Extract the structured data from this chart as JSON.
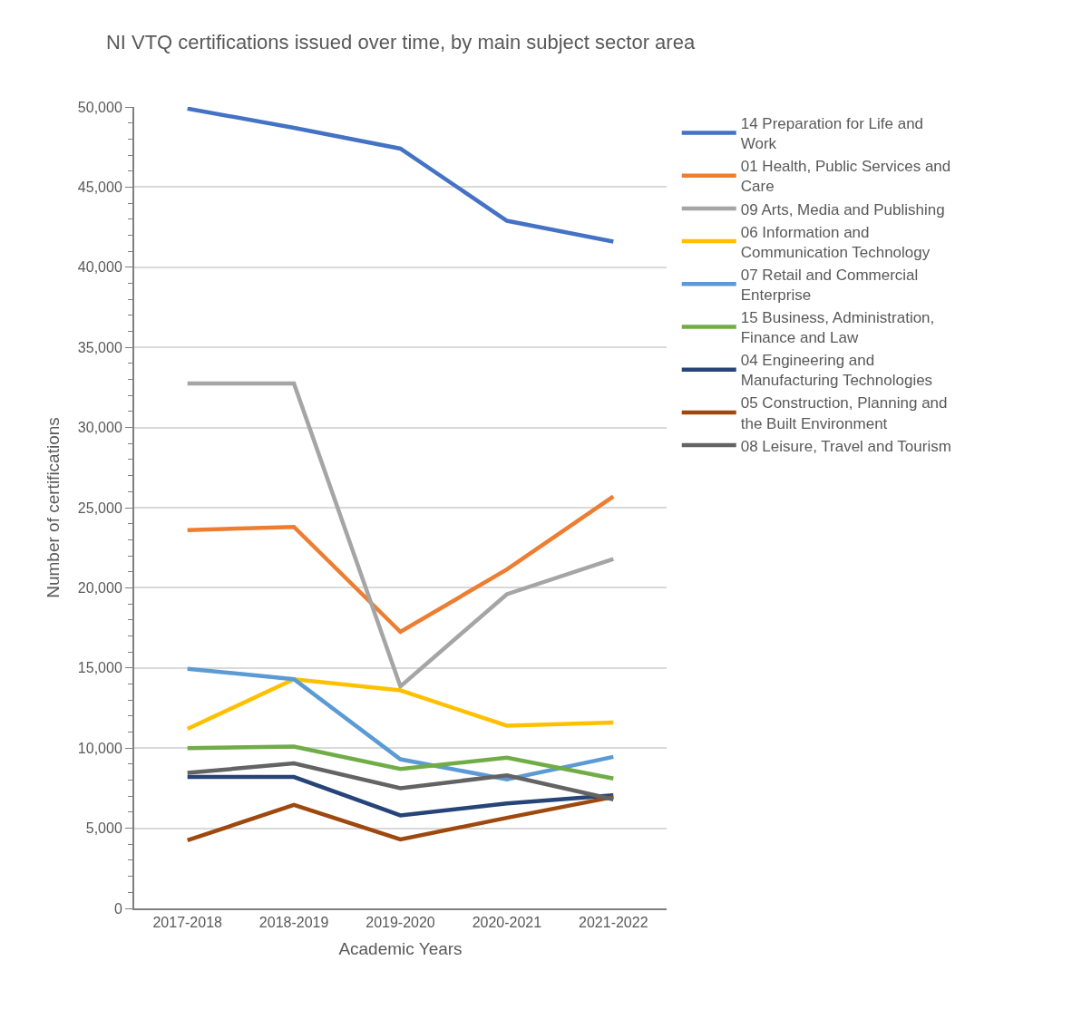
{
  "chart_data": {
    "type": "line",
    "title": "NI VTQ certifications issued over time, by main subject sector area",
    "xlabel": "Academic Years",
    "ylabel": "Number of certifications",
    "categories": [
      "2017-2018",
      "2018-2019",
      "2019-2020",
      "2020-2021",
      "2021-2022"
    ],
    "ylim": [
      0,
      50000
    ],
    "yticks": [
      {
        "value": 0,
        "label": "0"
      },
      {
        "value": 5000,
        "label": "5,000"
      },
      {
        "value": 10000,
        "label": "10,000"
      },
      {
        "value": 15000,
        "label": "15,000"
      },
      {
        "value": 20000,
        "label": "20,000"
      },
      {
        "value": 25000,
        "label": "25,000"
      },
      {
        "value": 30000,
        "label": "30,000"
      },
      {
        "value": 35000,
        "label": "35,000"
      },
      {
        "value": 40000,
        "label": "40,000"
      },
      {
        "value": 45000,
        "label": "45,000"
      },
      {
        "value": 50000,
        "label": "50,000"
      }
    ],
    "grid": "y",
    "legend": "right",
    "marker": "none",
    "line_style": "solid",
    "series": [
      {
        "name": "14 Preparation for Life and Work",
        "color": "#4472c4",
        "values": [
          49900,
          48700,
          47400,
          42900,
          41600
        ]
      },
      {
        "name": "01 Health, Public Services and Care",
        "color": "#ed7d31",
        "values": [
          23600,
          23800,
          17250,
          21150,
          25700
        ]
      },
      {
        "name": "09 Arts, Media and Publishing",
        "color": "#a5a5a5",
        "values": [
          32750,
          32750,
          13850,
          19600,
          21800
        ]
      },
      {
        "name": "06 Information and Communication Technology",
        "color": "#ffc000",
        "values": [
          11200,
          14300,
          13600,
          11400,
          11600
        ]
      },
      {
        "name": "07 Retail and Commercial Enterprise",
        "color": "#5b9bd5",
        "values": [
          14950,
          14300,
          9300,
          8050,
          9450
        ]
      },
      {
        "name": "15 Business, Administration, Finance and Law",
        "color": "#70ad47",
        "values": [
          10000,
          10100,
          8700,
          9400,
          8100
        ]
      },
      {
        "name": "04 Engineering and Manufacturing Technologies",
        "color": "#264478",
        "values": [
          8200,
          8200,
          5800,
          6550,
          7050
        ]
      },
      {
        "name": "05 Construction, Planning and the Built Environment",
        "color": "#9e480e",
        "values": [
          4250,
          6450,
          4300,
          5650,
          6950
        ]
      },
      {
        "name": "08 Leisure, Travel and Tourism",
        "color": "#636363",
        "values": [
          8450,
          9050,
          7500,
          8300,
          6800
        ]
      }
    ]
  }
}
